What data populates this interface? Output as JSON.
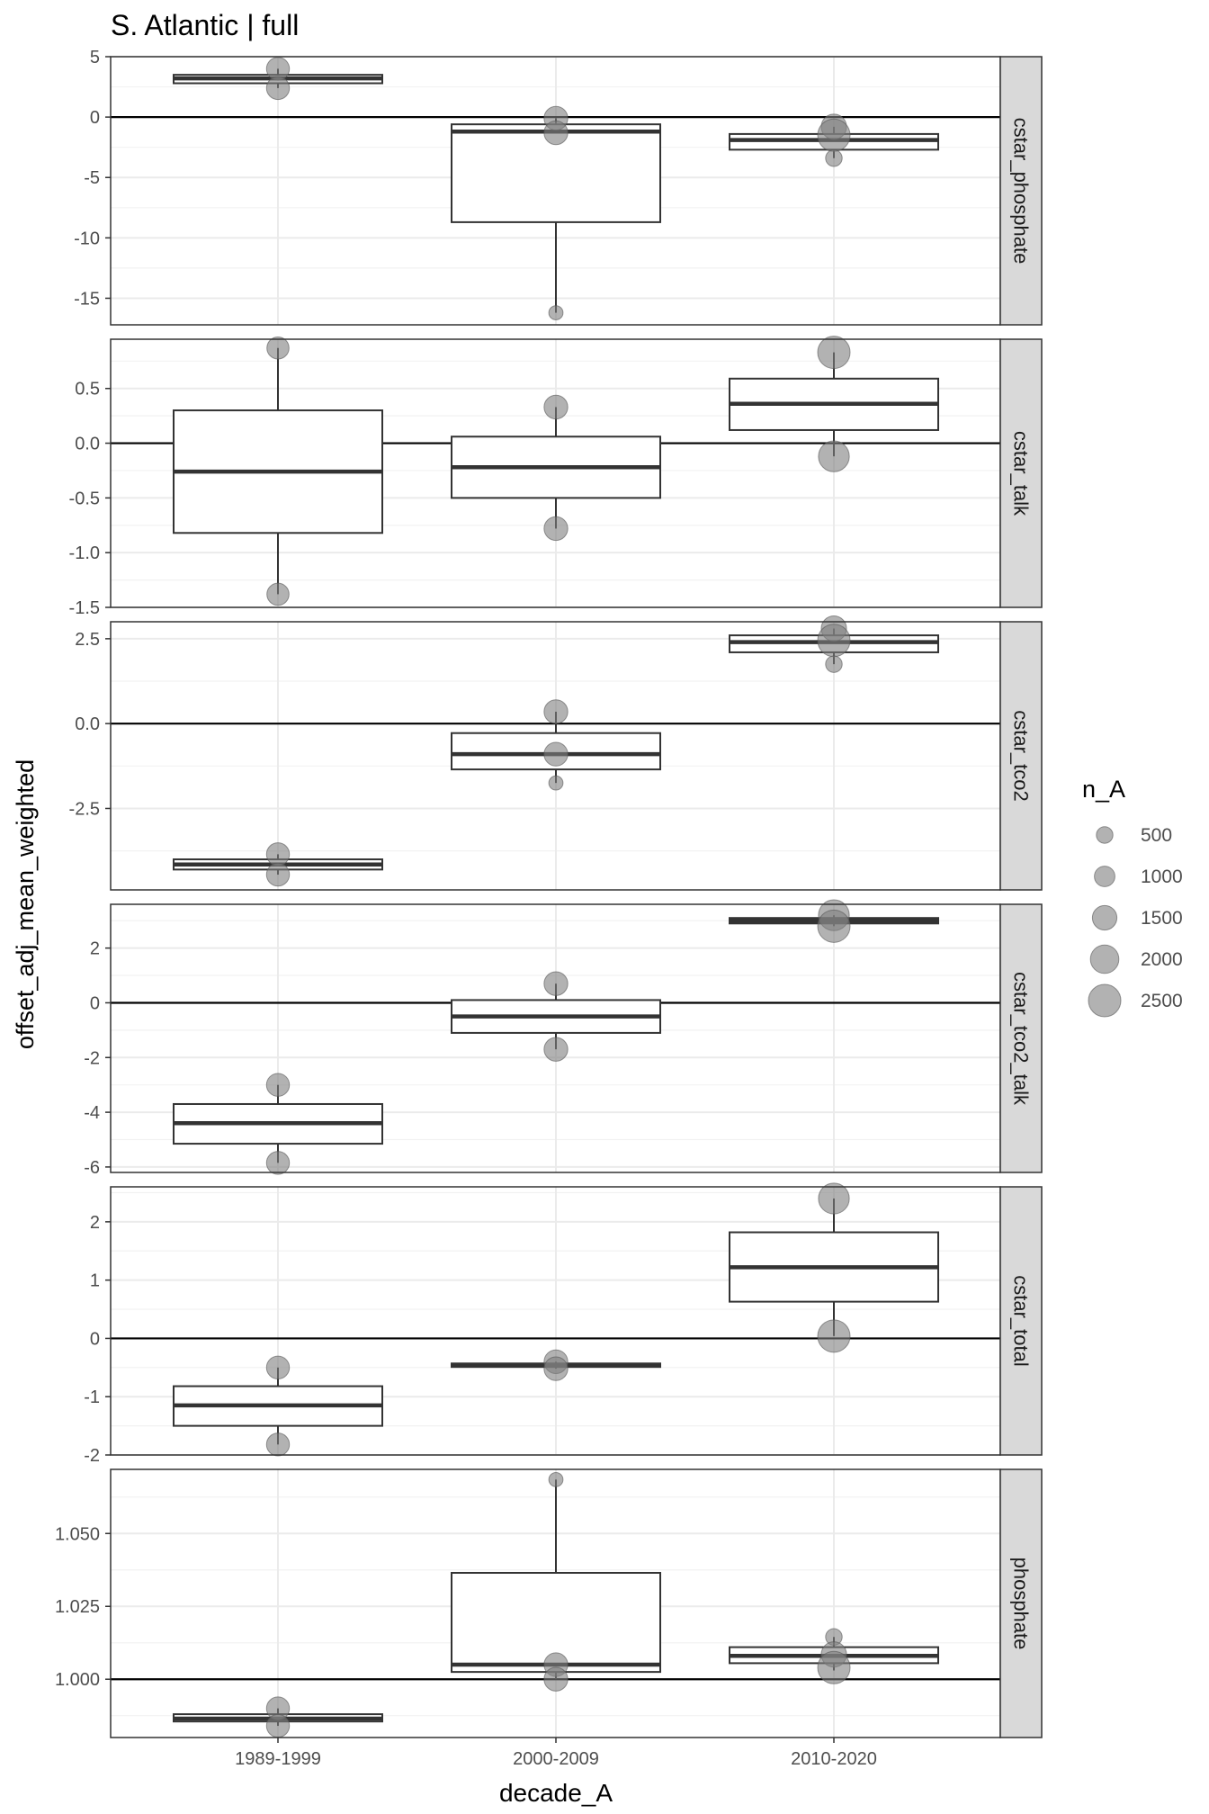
{
  "chart_data": {
    "type": "box",
    "title": "S. Atlantic | full",
    "xlabel": "decade_A",
    "ylabel": "offset_adj_mean_weighted",
    "categories": [
      "1989-1999",
      "2000-2009",
      "2010-2020"
    ],
    "legend": {
      "title": "n_A",
      "placement": "right",
      "entries": [
        {
          "label": "500",
          "value": 500
        },
        {
          "label": "1000",
          "value": 1000
        },
        {
          "label": "1500",
          "value": 1500
        },
        {
          "label": "2000",
          "value": 2000
        },
        {
          "label": "2500",
          "value": 2500
        }
      ]
    },
    "reference_line": 0,
    "colors": {
      "points": "#7f7f7f",
      "box_line": "#333333",
      "strip": "#d9d9d9",
      "panel_border": "#333333"
    },
    "grid": true,
    "panels": [
      {
        "name": "cstar_phosphate",
        "ylim": [
          -17.2,
          5
        ],
        "yticks": [
          5,
          0,
          -5,
          -10,
          -15
        ],
        "ytick_labels": [
          "5",
          "0",
          "-5",
          "-10",
          "-15"
        ],
        "reference": 0,
        "boxes": [
          {
            "category": "1989-1999",
            "q1": 2.8,
            "median": 3.2,
            "q3": 3.5,
            "whisker_low": 2.4,
            "whisker_high": 4.0
          },
          {
            "category": "2000-2009",
            "q1": -8.7,
            "median": -1.2,
            "q3": -0.6,
            "whisker_low": -16.2,
            "whisker_high": -0.1
          },
          {
            "category": "2010-2020",
            "q1": -2.7,
            "median": -1.9,
            "q3": -1.4,
            "whisker_low": -3.4,
            "whisker_high": -0.8
          }
        ],
        "points": [
          {
            "category": "1989-1999",
            "y": 4.0,
            "n": 1300
          },
          {
            "category": "1989-1999",
            "y": 2.4,
            "n": 1300
          },
          {
            "category": "2000-2009",
            "y": -0.1,
            "n": 1400
          },
          {
            "category": "2000-2009",
            "y": -1.3,
            "n": 1400
          },
          {
            "category": "2000-2009",
            "y": -16.2,
            "n": 200
          },
          {
            "category": "2010-2020",
            "y": -0.8,
            "n": 1600
          },
          {
            "category": "2010-2020",
            "y": -1.5,
            "n": 2500
          },
          {
            "category": "2010-2020",
            "y": -3.4,
            "n": 500
          }
        ]
      },
      {
        "name": "cstar_talk",
        "ylim": [
          -1.5,
          0.95
        ],
        "yticks": [
          0.5,
          0.0,
          -0.5,
          -1.0,
          -1.5
        ],
        "ytick_labels": [
          "0.5",
          "0.0",
          "-0.5",
          "-1.0",
          "-1.5"
        ],
        "reference": 0,
        "boxes": [
          {
            "category": "1989-1999",
            "q1": -0.82,
            "median": -0.26,
            "q3": 0.3,
            "whisker_low": -1.38,
            "whisker_high": 0.87
          },
          {
            "category": "2000-2009",
            "q1": -0.5,
            "median": -0.22,
            "q3": 0.06,
            "whisker_low": -0.78,
            "whisker_high": 0.33
          },
          {
            "category": "2010-2020",
            "q1": 0.12,
            "median": 0.36,
            "q3": 0.59,
            "whisker_low": -0.12,
            "whisker_high": 0.83
          }
        ],
        "points": [
          {
            "category": "1989-1999",
            "y": 0.87,
            "n": 1200
          },
          {
            "category": "1989-1999",
            "y": -1.38,
            "n": 1200
          },
          {
            "category": "2000-2009",
            "y": 0.33,
            "n": 1400
          },
          {
            "category": "2000-2009",
            "y": -0.78,
            "n": 1400
          },
          {
            "category": "2010-2020",
            "y": 0.83,
            "n": 2500
          },
          {
            "category": "2010-2020",
            "y": -0.12,
            "n": 2300
          }
        ]
      },
      {
        "name": "cstar_tco2",
        "ylim": [
          -4.9,
          3.0
        ],
        "yticks": [
          2.5,
          0.0,
          -2.5
        ],
        "ytick_labels": [
          "2.5",
          "0.0",
          "-2.5"
        ],
        "reference": 0,
        "boxes": [
          {
            "category": "1989-1999",
            "q1": -4.3,
            "median": -4.15,
            "q3": -4.0,
            "whisker_low": -4.45,
            "whisker_high": -3.85
          },
          {
            "category": "2000-2009",
            "q1": -1.35,
            "median": -0.9,
            "q3": -0.28,
            "whisker_low": -1.75,
            "whisker_high": 0.35
          },
          {
            "category": "2010-2020",
            "q1": 2.1,
            "median": 2.4,
            "q3": 2.6,
            "whisker_low": 1.75,
            "whisker_high": 2.8
          }
        ],
        "points": [
          {
            "category": "1989-1999",
            "y": -3.85,
            "n": 1300
          },
          {
            "category": "1989-1999",
            "y": -4.45,
            "n": 1300
          },
          {
            "category": "2000-2009",
            "y": 0.35,
            "n": 1400
          },
          {
            "category": "2000-2009",
            "y": -0.9,
            "n": 1400
          },
          {
            "category": "2000-2009",
            "y": -1.75,
            "n": 200
          },
          {
            "category": "2010-2020",
            "y": 2.8,
            "n": 1600
          },
          {
            "category": "2010-2020",
            "y": 2.45,
            "n": 2500
          },
          {
            "category": "2010-2020",
            "y": 1.75,
            "n": 500
          }
        ]
      },
      {
        "name": "cstar_tco2_talk",
        "ylim": [
          -6.2,
          3.6
        ],
        "yticks": [
          2,
          0,
          -2,
          -4,
          -6
        ],
        "ytick_labels": [
          "2",
          "0",
          "-2",
          "-4",
          "-6"
        ],
        "reference": 0,
        "boxes": [
          {
            "category": "1989-1999",
            "q1": -5.15,
            "median": -4.4,
            "q3": -3.7,
            "whisker_low": -5.85,
            "whisker_high": -3.0
          },
          {
            "category": "2000-2009",
            "q1": -1.1,
            "median": -0.5,
            "q3": 0.1,
            "whisker_low": -1.7,
            "whisker_high": 0.7
          },
          {
            "category": "2010-2020",
            "q1": 2.9,
            "median": 3.0,
            "q3": 3.1,
            "whisker_low": 2.8,
            "whisker_high": 3.2
          }
        ],
        "points": [
          {
            "category": "1989-1999",
            "y": -3.0,
            "n": 1300
          },
          {
            "category": "1989-1999",
            "y": -5.85,
            "n": 1300
          },
          {
            "category": "2000-2009",
            "y": 0.7,
            "n": 1400
          },
          {
            "category": "2000-2009",
            "y": -1.7,
            "n": 1400
          },
          {
            "category": "2010-2020",
            "y": 3.2,
            "n": 2300
          },
          {
            "category": "2010-2020",
            "y": 2.8,
            "n": 2500
          }
        ]
      },
      {
        "name": "cstar_total",
        "ylim": [
          -2.0,
          2.6
        ],
        "yticks": [
          2,
          1,
          0,
          -1,
          -2
        ],
        "ytick_labels": [
          "2",
          "1",
          "0",
          "-1",
          "-2"
        ],
        "reference": 0,
        "boxes": [
          {
            "category": "1989-1999",
            "q1": -1.5,
            "median": -1.15,
            "q3": -0.82,
            "whisker_low": -1.82,
            "whisker_high": -0.5
          },
          {
            "category": "2000-2009",
            "q1": -0.49,
            "median": -0.46,
            "q3": -0.43,
            "whisker_low": -0.52,
            "whisker_high": -0.4
          },
          {
            "category": "2010-2020",
            "q1": 0.63,
            "median": 1.22,
            "q3": 1.82,
            "whisker_low": 0.04,
            "whisker_high": 2.4
          }
        ],
        "points": [
          {
            "category": "1989-1999",
            "y": -0.5,
            "n": 1300
          },
          {
            "category": "1989-1999",
            "y": -1.82,
            "n": 1300
          },
          {
            "category": "2000-2009",
            "y": -0.4,
            "n": 1400
          },
          {
            "category": "2000-2009",
            "y": -0.52,
            "n": 1400
          },
          {
            "category": "2010-2020",
            "y": 2.4,
            "n": 2300
          },
          {
            "category": "2010-2020",
            "y": 0.04,
            "n": 2500
          }
        ]
      },
      {
        "name": "phosphate",
        "ylim": [
          0.98,
          1.072
        ],
        "yticks": [
          1.05,
          1.025,
          1.0
        ],
        "ytick_labels": [
          "1.050",
          "1.025",
          "1.000"
        ],
        "reference": 1.0,
        "boxes": [
          {
            "category": "1989-1999",
            "q1": 0.9855,
            "median": 0.9865,
            "q3": 0.988,
            "whisker_low": 0.984,
            "whisker_high": 0.99
          },
          {
            "category": "2000-2009",
            "q1": 1.0025,
            "median": 1.005,
            "q3": 1.0365,
            "whisker_low": 1.0,
            "whisker_high": 1.0685
          },
          {
            "category": "2010-2020",
            "q1": 1.0055,
            "median": 1.008,
            "q3": 1.011,
            "whisker_low": 1.003,
            "whisker_high": 1.0145
          }
        ],
        "points": [
          {
            "category": "1989-1999",
            "y": 0.99,
            "n": 1300
          },
          {
            "category": "1989-1999",
            "y": 0.984,
            "n": 1300
          },
          {
            "category": "2000-2009",
            "y": 1.0685,
            "n": 200
          },
          {
            "category": "2000-2009",
            "y": 1.005,
            "n": 1400
          },
          {
            "category": "2000-2009",
            "y": 1.0,
            "n": 1400
          },
          {
            "category": "2010-2020",
            "y": 1.0145,
            "n": 500
          },
          {
            "category": "2010-2020",
            "y": 1.0085,
            "n": 1600
          },
          {
            "category": "2010-2020",
            "y": 1.004,
            "n": 2500
          }
        ]
      }
    ]
  }
}
